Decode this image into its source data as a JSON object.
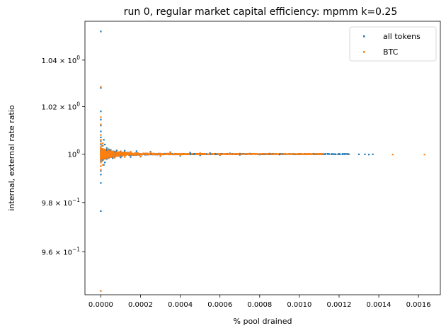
{
  "chart_data": {
    "type": "scatter",
    "title": "run 0, regular market capital efficiency: mpmm k=0.25",
    "xlabel": "% pool drained",
    "ylabel": "internal, external rate ratio",
    "yscale": "log",
    "xlim": [
      -8e-05,
      0.00171
    ],
    "ylim": [
      0.943,
      1.057
    ],
    "x_ticks": [
      {
        "value": 0.0,
        "label": "0.0000"
      },
      {
        "value": 0.0002,
        "label": "0.0002"
      },
      {
        "value": 0.0004,
        "label": "0.0004"
      },
      {
        "value": 0.0006,
        "label": "0.0006"
      },
      {
        "value": 0.0008,
        "label": "0.0008"
      },
      {
        "value": 0.001,
        "label": "0.0010"
      },
      {
        "value": 0.0012,
        "label": "0.0012"
      },
      {
        "value": 0.0014,
        "label": "0.0014"
      },
      {
        "value": 0.0016,
        "label": "0.0016"
      }
    ],
    "y_ticks": [
      {
        "value": 0.96,
        "mantissa": "9.6",
        "base": "10",
        "exp": "−1"
      },
      {
        "value": 0.98,
        "mantissa": "9.8",
        "base": "10",
        "exp": "−1"
      },
      {
        "value": 1.0,
        "mantissa": "",
        "base": "10",
        "exp": "0"
      },
      {
        "value": 1.02,
        "mantissa": "1.02",
        "base": "10",
        "exp": "0"
      },
      {
        "value": 1.04,
        "mantissa": "1.04",
        "base": "10",
        "exp": "0"
      }
    ],
    "legend_position": "upper right",
    "series": [
      {
        "name": "all tokens",
        "color": "#1f77b4",
        "points": [
          [
            0.0,
            1.0525
          ],
          [
            0.0,
            1.028
          ],
          [
            0.0,
            1.018
          ],
          [
            0.0,
            1.0145
          ],
          [
            0.0,
            1.012
          ],
          [
            0.0,
            1.0095
          ],
          [
            0.0,
            1.007
          ],
          [
            0.0,
            1.0055
          ],
          [
            0.0,
            1.004
          ],
          [
            0.0,
            1.003
          ],
          [
            0.0,
            0.997
          ],
          [
            0.0,
            0.995
          ],
          [
            0.0,
            0.993
          ],
          [
            0.0,
            0.9915
          ],
          [
            0.0,
            0.988
          ],
          [
            0.0,
            0.9765
          ],
          [
            0.0,
            0.9445
          ],
          [
            1e-05,
            1.0035
          ],
          [
            1e-05,
            0.9975
          ],
          [
            1.5e-05,
            1.006
          ],
          [
            1.5e-05,
            0.9955
          ],
          [
            2e-05,
            1.004
          ],
          [
            2e-05,
            0.9965
          ],
          [
            3e-05,
            1.0025
          ],
          [
            3e-05,
            0.998
          ],
          [
            4e-05,
            1.002
          ],
          [
            4e-05,
            0.9985
          ],
          [
            5e-05,
            1.0018
          ],
          [
            6e-05,
            0.9983
          ],
          [
            8e-05,
            1.0015
          ],
          [
            0.0001,
            0.9986
          ],
          [
            0.00012,
            1.0014
          ],
          [
            0.00015,
            0.9988
          ],
          [
            0.00018,
            1.0012
          ],
          [
            0.0002,
            0.9989
          ],
          [
            0.00025,
            1.001
          ],
          [
            0.0003,
            0.9992
          ],
          [
            0.00035,
            1.0008
          ],
          [
            0.0004,
            0.9993
          ],
          [
            0.00045,
            1.0006
          ],
          [
            0.0005,
            0.9995
          ],
          [
            0.00055,
            1.0004
          ],
          [
            0.0006,
            0.9996
          ],
          [
            0.00065,
            1.0003
          ],
          [
            0.0007,
            0.9997
          ],
          [
            0.00075,
            1.0002
          ],
          [
            0.0008,
            0.9998
          ],
          [
            0.00085,
            1.0002
          ],
          [
            0.0009,
            0.9998
          ],
          [
            0.00095,
            1.0001
          ],
          [
            0.001,
            0.9999
          ],
          [
            0.00105,
            1.0001
          ],
          [
            0.0011,
            0.9999
          ],
          [
            0.00115,
            1.0
          ],
          [
            0.0012,
            1.0
          ],
          [
            0.00125,
            0.9999
          ],
          [
            0.0013,
            0.9999
          ],
          [
            0.00133,
            0.9999
          ],
          [
            0.00135,
            0.9998
          ],
          [
            0.00137,
            0.9999
          ]
        ]
      },
      {
        "name": "BTC",
        "color": "#ff7f0e",
        "points": [
          [
            0.0,
            1.0285
          ],
          [
            0.0,
            1.0155
          ],
          [
            0.0,
            1.0125
          ],
          [
            0.0,
            1.008
          ],
          [
            0.0,
            1.006
          ],
          [
            0.0,
            1.0045
          ],
          [
            0.0,
            1.003
          ],
          [
            0.0,
            0.998
          ],
          [
            0.0,
            0.9965
          ],
          [
            0.0,
            0.995
          ],
          [
            0.0,
            0.9935
          ],
          [
            0.0,
            0.9445
          ],
          [
            5e-06,
            1.0035
          ],
          [
            5e-06,
            0.997
          ],
          [
            1e-05,
            1.0045
          ],
          [
            1e-05,
            0.9955
          ],
          [
            1.5e-05,
            1.002
          ],
          [
            2e-05,
            0.998
          ],
          [
            3e-05,
            1.002
          ],
          [
            4e-05,
            0.9983
          ],
          [
            5e-05,
            1.0015
          ],
          [
            7e-05,
            0.9985
          ],
          [
            0.0001,
            1.0012
          ],
          [
            0.00012,
            0.9988
          ],
          [
            0.00015,
            1.001
          ],
          [
            0.0002,
            0.999
          ],
          [
            0.00025,
            1.0008
          ],
          [
            0.0003,
            0.9993
          ],
          [
            0.00035,
            1.0006
          ],
          [
            0.0004,
            0.9995
          ],
          [
            0.0005,
            1.0004
          ],
          [
            0.0006,
            0.9997
          ],
          [
            0.0007,
            1.0002
          ],
          [
            0.0008,
            0.9998
          ],
          [
            0.0009,
            1.0001
          ],
          [
            0.001,
            0.9999
          ],
          [
            0.0011,
            1.0
          ],
          [
            0.0012,
            0.9999
          ],
          [
            0.00125,
            0.9999
          ],
          [
            0.00147,
            0.9998
          ],
          [
            0.00163,
            0.9998
          ]
        ]
      }
    ]
  }
}
